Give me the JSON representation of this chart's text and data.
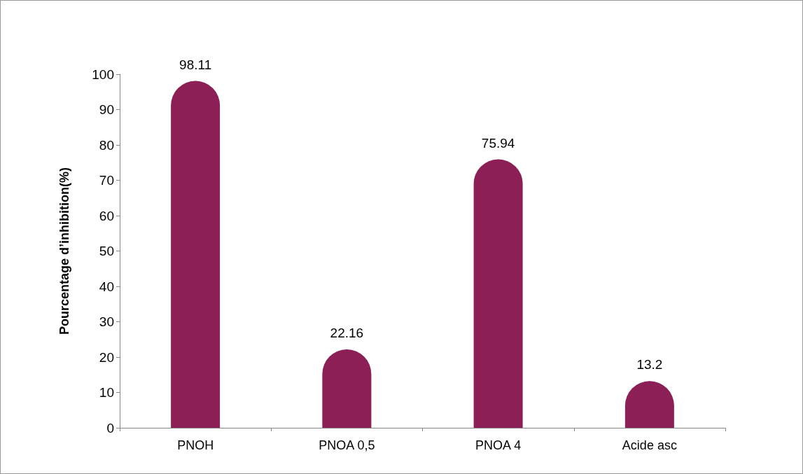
{
  "chart_data": {
    "type": "bar",
    "ylabel": "Pourcentage d’inhibition(%)",
    "categories": [
      "PNOH",
      "PNOA 0,5",
      "PNOA 4",
      "Acide asc"
    ],
    "values": [
      98.11,
      22.16,
      75.94,
      13.2
    ],
    "color": "#8b1f56",
    "ylim": [
      0,
      100
    ],
    "yticks": [
      0,
      10,
      20,
      30,
      40,
      50,
      60,
      70,
      80,
      90,
      100
    ],
    "data_labels": true,
    "grid": false
  }
}
